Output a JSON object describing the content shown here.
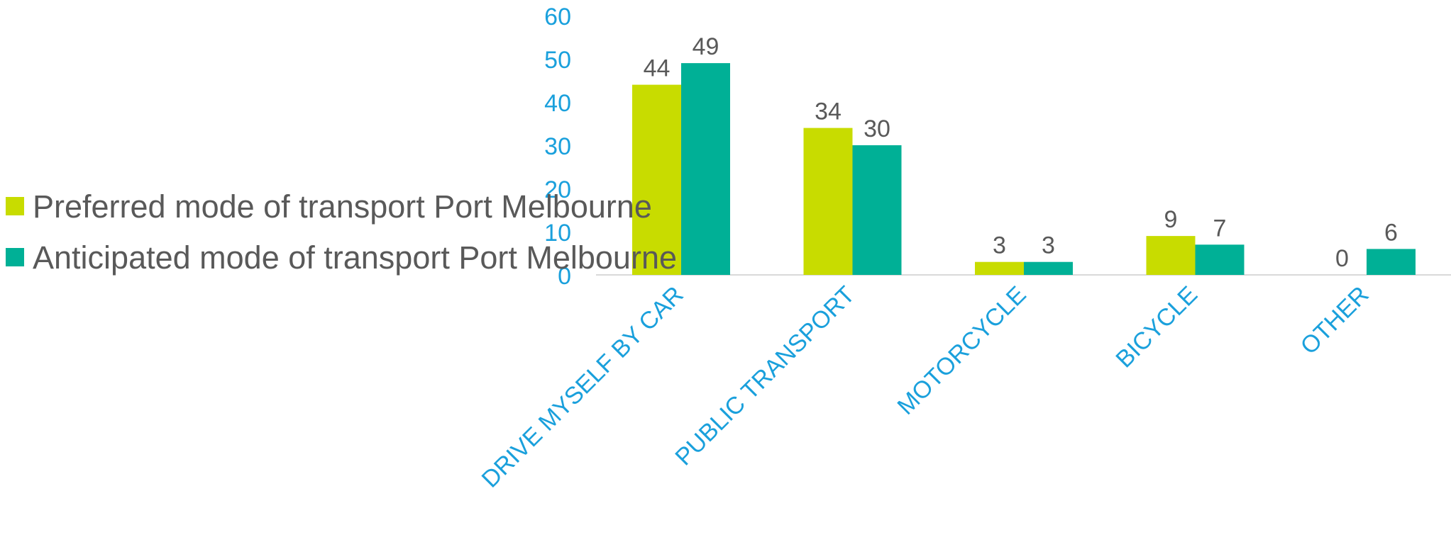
{
  "colors": {
    "series1": "#C8DC00",
    "series2": "#00B096",
    "axis_text": "#1AA0DC",
    "label_text": "#595959"
  },
  "chart_data": {
    "type": "bar",
    "categories": [
      "DRIVE MYSELF BY CAR",
      "PUBLIC TRANSPORT",
      "MOTORCYCLE",
      "BICYCLE",
      "OTHER"
    ],
    "series": [
      {
        "name": "Preferred mode of transport Port Melbourne",
        "values": [
          44,
          34,
          3,
          9,
          0
        ]
      },
      {
        "name": "Anticipated mode of transport Port Melbourne",
        "values": [
          49,
          30,
          3,
          7,
          6
        ]
      }
    ],
    "yticks": [
      "0",
      "10",
      "20",
      "30",
      "40",
      "50",
      "60"
    ],
    "ylim": [
      0,
      60
    ],
    "grid": false,
    "legend_position": "left"
  }
}
